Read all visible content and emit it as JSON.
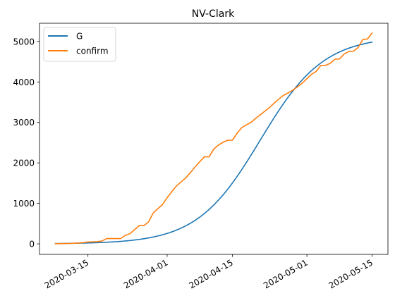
{
  "chart_data": {
    "type": "line",
    "title": "NV-Clark",
    "xlabel": "",
    "ylabel": "",
    "x_start": "2020-03-08",
    "x_end": "2020-05-15",
    "x_ticks": [
      {
        "label": "2020-03-15",
        "day": 7
      },
      {
        "label": "2020-04-01",
        "day": 24
      },
      {
        "label": "2020-04-15",
        "day": 38
      },
      {
        "label": "2020-05-01",
        "day": 54
      },
      {
        "label": "2020-05-15",
        "day": 68
      }
    ],
    "x_range_days": [
      -3.4,
      71.4
    ],
    "ylim": [
      -260,
      5450
    ],
    "y_ticks": [
      0,
      1000,
      2000,
      3000,
      4000,
      5000
    ],
    "legend_position": "top-left",
    "grid": false,
    "series": [
      {
        "name": "G",
        "color": "#1f77b4",
        "model": "logistic",
        "capacity": 5130,
        "growth_rate": 0.147,
        "midpoint_day": 44,
        "days": [
          0,
          68
        ]
      },
      {
        "name": "confirm",
        "color": "#ff7f0e",
        "days": [
          0,
          1,
          2,
          3,
          4,
          5,
          6,
          7,
          8,
          9,
          10,
          11,
          12,
          13,
          14,
          15,
          16,
          17,
          18,
          19,
          20,
          21,
          22,
          23,
          24,
          25,
          26,
          27,
          28,
          29,
          30,
          31,
          32,
          33,
          34,
          35,
          36,
          37,
          38,
          39,
          40,
          41,
          42,
          43,
          44,
          45,
          46,
          47,
          48,
          49,
          50,
          51,
          52,
          53,
          54,
          55,
          56,
          57,
          58,
          59,
          60,
          61,
          62,
          63,
          64,
          65,
          66,
          67,
          68
        ],
        "values": [
          5,
          5,
          8,
          10,
          15,
          20,
          30,
          45,
          50,
          55,
          70,
          130,
          130,
          130,
          130,
          210,
          250,
          350,
          450,
          450,
          540,
          760,
          870,
          970,
          1140,
          1290,
          1430,
          1530,
          1630,
          1760,
          1900,
          2030,
          2150,
          2150,
          2340,
          2440,
          2510,
          2560,
          2560,
          2730,
          2870,
          2940,
          3000,
          3100,
          3190,
          3280,
          3370,
          3480,
          3580,
          3670,
          3730,
          3800,
          3880,
          3970,
          4080,
          4190,
          4260,
          4410,
          4410,
          4460,
          4560,
          4570,
          4690,
          4750,
          4760,
          4850,
          5050,
          5060,
          5210
        ]
      }
    ]
  }
}
